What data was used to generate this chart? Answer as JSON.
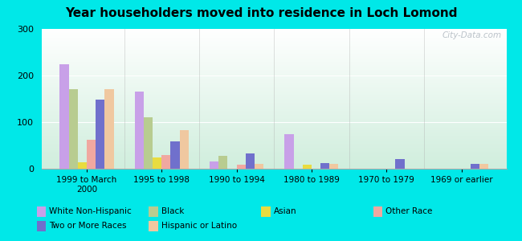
{
  "title": "Year householders moved into residence in Loch Lomond",
  "categories": [
    "1999 to March\n2000",
    "1995 to 1998",
    "1990 to 1994",
    "1980 to 1989",
    "1970 to 1979",
    "1969 or earlier"
  ],
  "series_order": [
    "White Non-Hispanic",
    "Black",
    "Asian",
    "Other Race",
    "Two or More Races",
    "Hispanic or Latino"
  ],
  "series": {
    "White Non-Hispanic": [
      225,
      165,
      15,
      75,
      0,
      0
    ],
    "Black": [
      170,
      110,
      28,
      0,
      0,
      0
    ],
    "Asian": [
      14,
      25,
      0,
      8,
      0,
      0
    ],
    "Other Race": [
      62,
      30,
      8,
      0,
      0,
      0
    ],
    "Two or More Races": [
      148,
      58,
      32,
      12,
      20,
      10
    ],
    "Hispanic or Latino": [
      170,
      83,
      10,
      10,
      0,
      10
    ]
  },
  "colors": {
    "White Non-Hispanic": "#c8a0e8",
    "Black": "#b8cc90",
    "Asian": "#e8dc40",
    "Other Race": "#f0a8a0",
    "Two or More Races": "#7070cc",
    "Hispanic or Latino": "#f0c8a0"
  },
  "legend_row1": [
    "White Non-Hispanic",
    "Black",
    "Asian",
    "Other Race"
  ],
  "legend_row2": [
    "Two or More Races",
    "Hispanic or Latino"
  ],
  "ylim": [
    0,
    300
  ],
  "yticks": [
    0,
    100,
    200,
    300
  ],
  "figure_bg": "#00e8e8",
  "plot_bg_top": "#ffffff",
  "plot_bg_bottom": "#d0eedd",
  "watermark": "City-Data.com"
}
